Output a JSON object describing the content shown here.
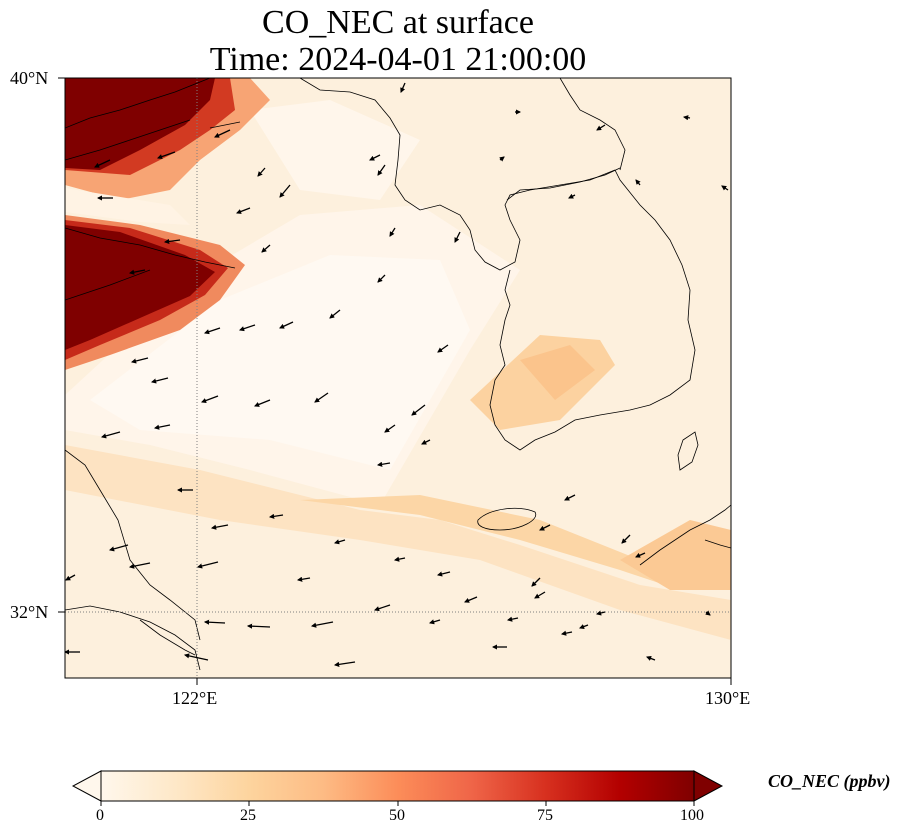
{
  "title": {
    "line1": "CO_NEC at surface",
    "line2": "Time: 2024-04-01 21:00:00"
  },
  "axes": {
    "lat_ticks": [
      "40°N",
      "32°N"
    ],
    "lon_ticks": [
      "122°E",
      "130°E"
    ],
    "extent": {
      "lon": [
        120,
        130
      ],
      "lat": [
        31,
        40
      ]
    },
    "gridlines": "dotted at 122°E and 32°N"
  },
  "colorbar": {
    "label": "CO_NEC (ppbv)",
    "ticks": [
      "0",
      "25",
      "50",
      "75",
      "100"
    ],
    "range": [
      0,
      100
    ],
    "colormap": "OrRd",
    "extend": "both",
    "stops": [
      "#fff7ec",
      "#fee8c8",
      "#fdd49e",
      "#fdbb84",
      "#fc8d59",
      "#ef6548",
      "#d7301f",
      "#b30000",
      "#7f0000"
    ]
  },
  "colors": {
    "coast": "#000000",
    "arrow": "#000000",
    "background_low": "#fdf0de"
  }
}
